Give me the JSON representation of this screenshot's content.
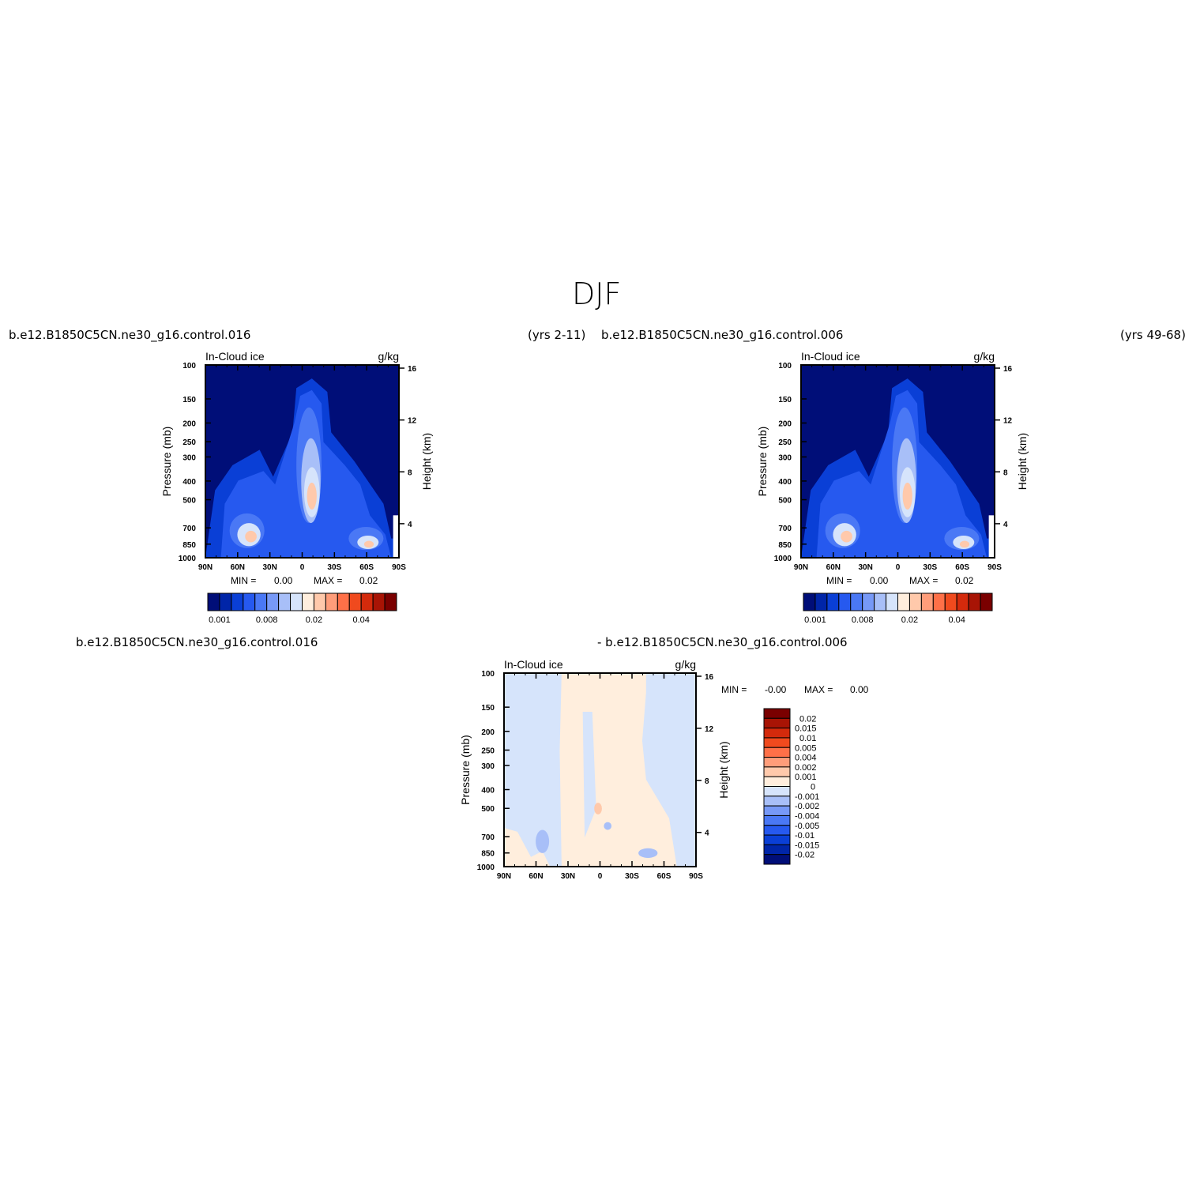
{
  "page_title": "DJF",
  "headers": {
    "top_left_case": "b.e12.B1850C5CN.ne30_g16.control.016",
    "top_left_years": "(yrs 2-11)",
    "top_right_case": "b.e12.B1850C5CN.ne30_g16.control.006",
    "top_right_years": "(yrs 49-68)",
    "bottom_case_a": "b.e12.B1850C5CN.ne30_g16.control.016",
    "bottom_case_b": "- b.e12.B1850C5CN.ne30_g16.control.006"
  },
  "chart_data": [
    {
      "type": "heatmap",
      "panel": "case 016",
      "left_label": "In-Cloud ice",
      "right_label": "g/kg",
      "ylabel": "Pressure (mb)",
      "y2label": "Height (km)",
      "x_ticks": [
        "90N",
        "60N",
        "30N",
        "0",
        "30S",
        "60S",
        "90S"
      ],
      "y_ticks": [
        "100",
        "150",
        "200",
        "250",
        "300",
        "400",
        "500",
        "700",
        "850",
        "1000"
      ],
      "y2_ticks": [
        "16",
        "12",
        "8",
        "4"
      ],
      "min_label": "MIN =",
      "min_value": "0.00",
      "max_label": "MAX =",
      "max_value": "0.02",
      "colorbar_labels": [
        "0.001",
        "0.008",
        "0.02",
        "0.04"
      ],
      "colors": [
        "#000e78",
        "#0025a8",
        "#0a3fd6",
        "#2659ef",
        "#4a78f5",
        "#7799f7",
        "#a8bff8",
        "#d6e4fb",
        "#ffeedd",
        "#ffc9ab",
        "#ff9d7a",
        "#ff7048",
        "#f04a1e",
        "#d42a0c",
        "#a81405",
        "#7a0000"
      ]
    },
    {
      "type": "heatmap",
      "panel": "case 006",
      "left_label": "In-Cloud ice",
      "right_label": "g/kg",
      "ylabel": "Pressure (mb)",
      "y2label": "Height (km)",
      "x_ticks": [
        "90N",
        "60N",
        "30N",
        "0",
        "30S",
        "60S",
        "90S"
      ],
      "y_ticks": [
        "100",
        "150",
        "200",
        "250",
        "300",
        "400",
        "500",
        "700",
        "850",
        "1000"
      ],
      "y2_ticks": [
        "16",
        "12",
        "8",
        "4"
      ],
      "min_label": "MIN =",
      "min_value": "0.00",
      "max_label": "MAX =",
      "max_value": "0.02",
      "colorbar_labels": [
        "0.001",
        "0.008",
        "0.02",
        "0.04"
      ],
      "colors": [
        "#000e78",
        "#0025a8",
        "#0a3fd6",
        "#2659ef",
        "#4a78f5",
        "#7799f7",
        "#a8bff8",
        "#d6e4fb",
        "#ffeedd",
        "#ffc9ab",
        "#ff9d7a",
        "#ff7048",
        "#f04a1e",
        "#d42a0c",
        "#a81405",
        "#7a0000"
      ]
    },
    {
      "type": "heatmap",
      "panel": "difference",
      "left_label": "In-Cloud ice",
      "right_label": "g/kg",
      "ylabel": "Pressure (mb)",
      "y2label": "Height (km)",
      "x_ticks": [
        "90N",
        "60N",
        "30N",
        "0",
        "30S",
        "60S",
        "90S"
      ],
      "y_ticks": [
        "100",
        "150",
        "200",
        "250",
        "300",
        "400",
        "500",
        "700",
        "850",
        "1000"
      ],
      "y2_ticks": [
        "16",
        "12",
        "8",
        "4"
      ],
      "min_label": "MIN =",
      "min_value": "-0.00",
      "max_label": "MAX =",
      "max_value": "0.00",
      "colorbar_labels": [
        "0.02",
        "0.015",
        "0.01",
        "0.005",
        "0.004",
        "0.002",
        "0.001",
        "0",
        "-0.001",
        "-0.002",
        "-0.004",
        "-0.005",
        "-0.01",
        "-0.015",
        "-0.02"
      ],
      "colors": [
        "#7a0000",
        "#a81405",
        "#d42a0c",
        "#f04a1e",
        "#ff7048",
        "#ff9d7a",
        "#ffc9ab",
        "#ffeedd",
        "#d6e4fb",
        "#a8bff8",
        "#7799f7",
        "#4a78f5",
        "#2659ef",
        "#0a3fd6",
        "#0025a8",
        "#000e78"
      ]
    }
  ]
}
